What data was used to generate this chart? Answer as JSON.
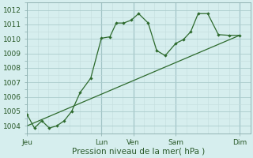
{
  "xlabel": "Pression niveau de la mer( hPa )",
  "bg_color": "#d6eeee",
  "line_color": "#2d6a2d",
  "grid_major_color": "#aacccc",
  "grid_minor_color": "#c4dddd",
  "ylim": [
    1003.5,
    1012.5
  ],
  "xlim": [
    0,
    10.5
  ],
  "s1x": [
    0.0,
    0.35,
    0.7,
    1.05,
    1.4,
    1.75,
    2.1,
    2.5,
    3.0,
    3.5,
    3.9,
    4.2,
    4.55,
    4.9,
    5.25,
    5.7,
    6.1,
    6.5,
    7.0,
    7.35,
    7.7,
    8.05,
    8.5,
    9.0,
    9.5,
    10.0
  ],
  "s1y": [
    1004.8,
    1003.85,
    1004.35,
    1003.85,
    1004.0,
    1004.35,
    1005.0,
    1006.3,
    1007.3,
    1010.05,
    1010.15,
    1011.1,
    1011.1,
    1011.3,
    1011.75,
    1011.1,
    1009.2,
    1008.85,
    1009.7,
    1009.95,
    1010.5,
    1011.75,
    1011.75,
    1010.3,
    1010.25,
    1010.25
  ],
  "s2x": [
    0.0,
    10.0
  ],
  "s2y": [
    1004.0,
    1010.25
  ],
  "xtick_positions": [
    0,
    3.5,
    5.0,
    7.0,
    10.0
  ],
  "xtick_labels": [
    "Jeu",
    "Lun",
    "Ven",
    "Sam",
    "Dim"
  ],
  "ytick_positions": [
    1004,
    1005,
    1006,
    1007,
    1008,
    1009,
    1010,
    1011,
    1012
  ],
  "vline_positions": [
    3.5,
    5.0,
    7.0,
    10.0
  ],
  "xlabel_fontsize": 7.5,
  "tick_fontsize": 6.5
}
